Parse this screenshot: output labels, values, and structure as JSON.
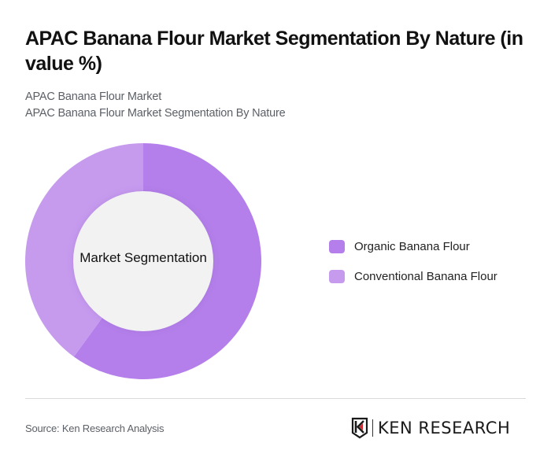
{
  "header": {
    "title": "APAC Banana Flour Market Segmentation By Nature (in value %)",
    "subtitle_1": "APAC Banana Flour Market",
    "subtitle_2": "APAC Banana Flour Market Segmentation By Nature"
  },
  "chart": {
    "center_label": "Market Segmentation",
    "legend": [
      {
        "label": "Organic Banana Flour",
        "color": "#b47fea"
      },
      {
        "label": "Conventional Banana Flour",
        "color": "#c69bee"
      }
    ]
  },
  "footer": {
    "source": "Source: Ken Research Analysis",
    "logo_text": "KEN RESEARCH"
  },
  "chart_data": {
    "type": "pie",
    "variant": "donut",
    "title": "APAC Banana Flour Market Segmentation By Nature (in value %)",
    "center_label": "Market Segmentation",
    "categories": [
      "Organic Banana Flour",
      "Conventional Banana Flour"
    ],
    "values": [
      60,
      40
    ],
    "colors": [
      "#b47fea",
      "#c69bee"
    ],
    "legend_position": "right",
    "start_angle": "12 o'clock, clockwise"
  }
}
